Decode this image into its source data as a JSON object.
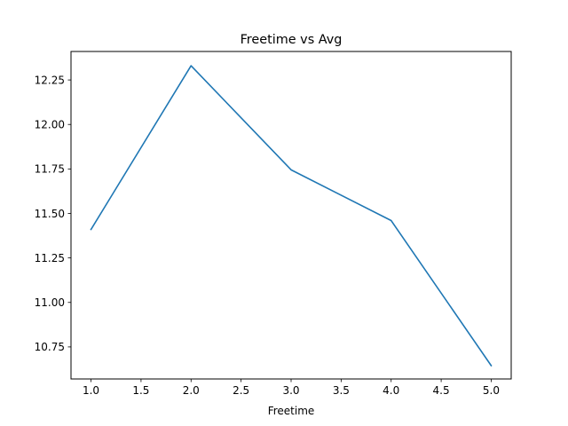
{
  "chart_data": {
    "type": "line",
    "title": "Freetime vs Avg",
    "xlabel": "Freetime",
    "ylabel": "",
    "x": [
      1.0,
      2.0,
      3.0,
      4.0,
      5.0
    ],
    "series": [
      {
        "values": [
          11.41,
          12.33,
          11.745,
          11.46,
          10.645
        ],
        "color": "#1f77b4"
      }
    ],
    "xlim": [
      0.8,
      5.2
    ],
    "ylim": [
      10.57,
      12.41
    ],
    "xticks": [
      1.0,
      1.5,
      2.0,
      2.5,
      3.0,
      3.5,
      4.0,
      4.5,
      5.0
    ],
    "xtick_labels": [
      "1.0",
      "1.5",
      "2.0",
      "2.5",
      "3.0",
      "3.5",
      "4.0",
      "4.5",
      "5.0"
    ],
    "yticks": [
      10.75,
      11.0,
      11.25,
      11.5,
      11.75,
      12.0,
      12.25
    ],
    "ytick_labels": [
      "10.75",
      "11.00",
      "11.25",
      "11.50",
      "11.75",
      "12.00",
      "12.25"
    ],
    "grid": false,
    "legend": "none"
  }
}
